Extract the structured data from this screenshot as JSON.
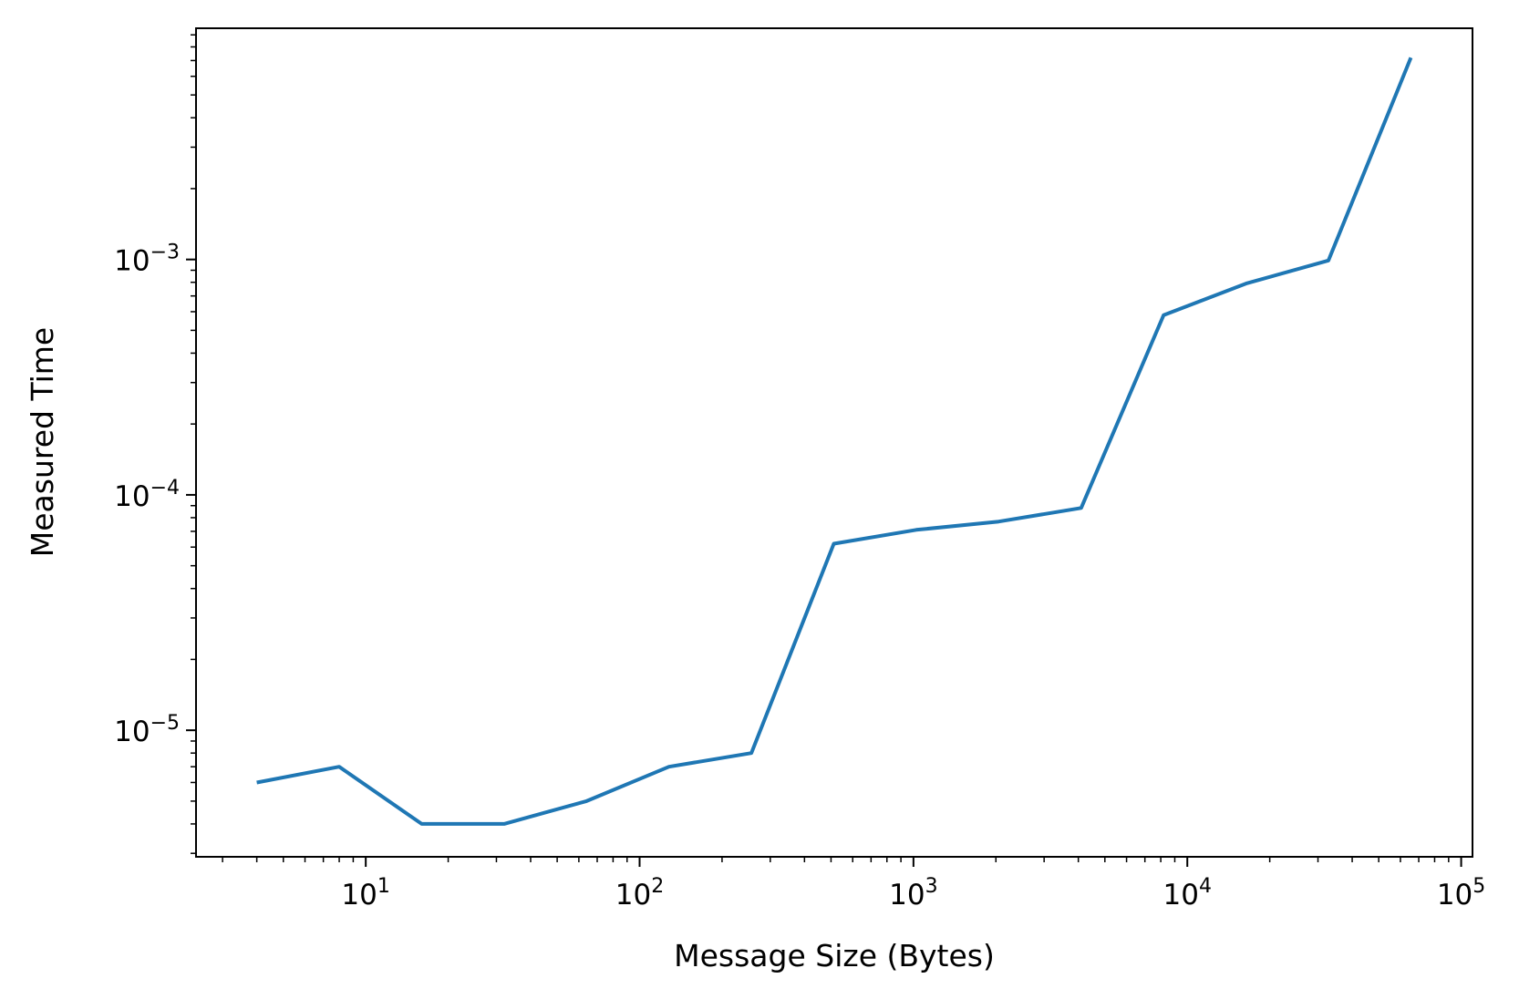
{
  "chart_data": {
    "type": "line",
    "title": "",
    "xlabel": "Message Size (Bytes)",
    "ylabel": "Measured Time",
    "xscale": "log",
    "yscale": "log",
    "xlim": [
      2.4,
      110000
    ],
    "ylim": [
      2.9e-06,
      0.0096
    ],
    "grid": false,
    "line_color": "#1f77b4",
    "x_ticks": [
      {
        "value": 10,
        "base": "10",
        "exp": "1"
      },
      {
        "value": 100,
        "base": "10",
        "exp": "2"
      },
      {
        "value": 1000,
        "base": "10",
        "exp": "3"
      },
      {
        "value": 10000,
        "base": "10",
        "exp": "4"
      },
      {
        "value": 100000,
        "base": "10",
        "exp": "5"
      }
    ],
    "y_ticks": [
      {
        "value": 1e-05,
        "base": "10",
        "exp": "−5"
      },
      {
        "value": 0.0001,
        "base": "10",
        "exp": "−4"
      },
      {
        "value": 0.001,
        "base": "10",
        "exp": "−3"
      }
    ],
    "series": [
      {
        "x": [
          4,
          8,
          16,
          32,
          64,
          128,
          256,
          512,
          1024,
          2048,
          4096,
          8192,
          16384,
          32768,
          65536
        ],
        "y": [
          6e-06,
          7e-06,
          4e-06,
          4e-06,
          5e-06,
          7e-06,
          8e-06,
          6.2e-05,
          7.1e-05,
          7.7e-05,
          8.8e-05,
          0.00058,
          0.00079,
          0.00099,
          0.0072
        ]
      }
    ]
  }
}
